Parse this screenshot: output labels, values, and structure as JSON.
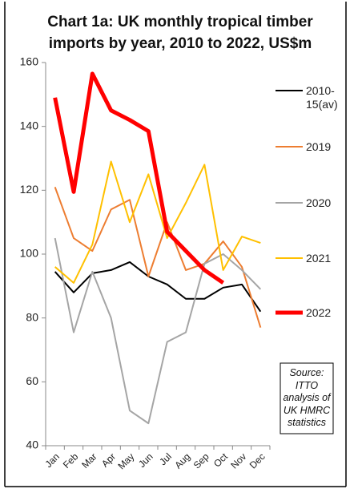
{
  "chart_data": {
    "type": "line",
    "title": "Chart 1a: UK monthly tropical timber imports by year, 2010 to 2022, US$m",
    "categories": [
      "Jan",
      "Feb",
      "Mar",
      "Apr",
      "May",
      "Jun",
      "Jul",
      "Aug",
      "Sep",
      "Oct",
      "Nov",
      "Dec"
    ],
    "ylim": [
      40,
      160
    ],
    "yticks": [
      40,
      60,
      80,
      100,
      120,
      140,
      160
    ],
    "legend": "right",
    "annotation": "Source: ITTO analysis of UK HMRC statistics",
    "series": [
      {
        "name": "2010-15(av)",
        "color": "#000000",
        "values": [
          94.5,
          88,
          94,
          95,
          97.5,
          93,
          90.5,
          86,
          86,
          89.5,
          90.5,
          82
        ]
      },
      {
        "name": "2019",
        "color": "#ed7d31",
        "values": [
          121,
          105,
          101,
          114,
          117,
          93,
          110,
          95,
          97,
          104,
          96,
          77
        ]
      },
      {
        "name": "2020",
        "color": "#a5a5a5",
        "values": [
          105,
          75.5,
          94.5,
          80,
          51,
          47,
          72.5,
          75.5,
          97,
          100,
          95,
          89
        ]
      },
      {
        "name": "2021",
        "color": "#ffc000",
        "values": [
          96,
          91,
          103,
          129,
          110,
          125,
          105,
          116,
          128,
          95,
          105.5,
          103.5
        ]
      },
      {
        "name": "2022",
        "color": "#ff0000",
        "values": [
          149,
          119.5,
          156.5,
          145,
          142,
          138.5,
          107,
          101,
          95,
          91,
          null,
          null
        ]
      }
    ]
  }
}
